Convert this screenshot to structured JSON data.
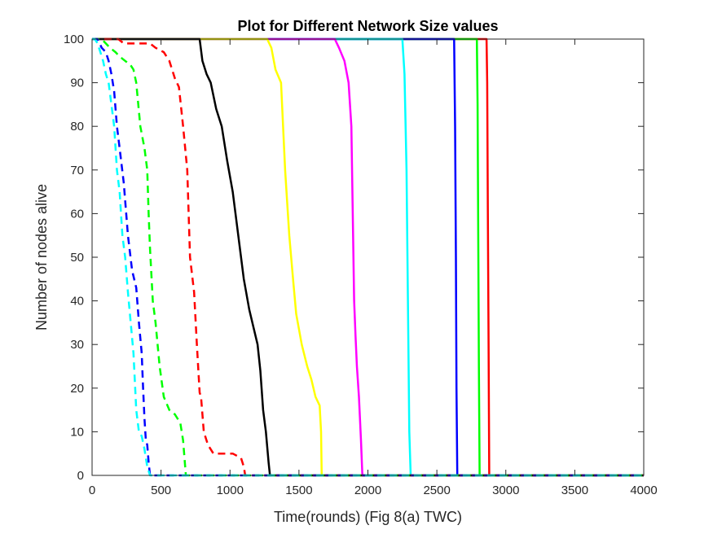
{
  "chart_data": {
    "type": "line",
    "title": "Plot for Different Network Size values",
    "xlabel": "Time(rounds) (Fig 8(a) TWC)",
    "ylabel": "Number of nodes alive",
    "xlim": [
      0,
      4000
    ],
    "ylim": [
      0,
      100
    ],
    "xticks": [
      0,
      500,
      1000,
      1500,
      2000,
      2500,
      3000,
      3500,
      4000
    ],
    "yticks": [
      0,
      10,
      20,
      30,
      40,
      50,
      60,
      70,
      80,
      90,
      100
    ],
    "grid": false,
    "box": true,
    "series": [
      {
        "color": "#ff0000",
        "style": "solid",
        "x": [
          0,
          2860,
          2865,
          2870,
          2875,
          2880,
          4000
        ],
        "y": [
          100,
          100,
          90,
          60,
          30,
          0,
          0
        ]
      },
      {
        "color": "#00ff00",
        "style": "solid",
        "x": [
          0,
          2790,
          2795,
          2800,
          2805,
          2810,
          4000
        ],
        "y": [
          100,
          100,
          85,
          55,
          25,
          0,
          0
        ]
      },
      {
        "color": "#0000ff",
        "style": "solid",
        "x": [
          0,
          2625,
          2632,
          2638,
          2642,
          2648,
          4000
        ],
        "y": [
          100,
          100,
          80,
          50,
          20,
          0,
          0
        ]
      },
      {
        "color": "#00ffff",
        "style": "solid",
        "x": [
          0,
          2250,
          2265,
          2280,
          2290,
          2300,
          2310,
          4000
        ],
        "y": [
          100,
          100,
          92,
          70,
          40,
          10,
          0,
          0
        ]
      },
      {
        "color": "#ff00ff",
        "style": "solid",
        "x": [
          0,
          1760,
          1790,
          1830,
          1860,
          1880,
          1890,
          1900,
          1910,
          1920,
          1935,
          1950,
          1960,
          4000
        ],
        "y": [
          100,
          100,
          98,
          95,
          90,
          80,
          60,
          40,
          32,
          25,
          18,
          8,
          0,
          0
        ]
      },
      {
        "color": "#ffff00",
        "style": "solid",
        "x": [
          0,
          1270,
          1300,
          1330,
          1370,
          1400,
          1430,
          1460,
          1480,
          1520,
          1560,
          1590,
          1620,
          1650,
          1660,
          1665,
          4000
        ],
        "y": [
          100,
          100,
          98,
          93,
          90,
          70,
          55,
          44,
          37,
          30,
          25,
          22,
          18,
          16,
          10,
          0,
          0
        ]
      },
      {
        "color": "#000000",
        "style": "solid",
        "x": [
          0,
          780,
          800,
          830,
          860,
          900,
          940,
          980,
          1020,
          1060,
          1100,
          1140,
          1170,
          1200,
          1220,
          1240,
          1260,
          1280,
          1290,
          4000
        ],
        "y": [
          100,
          100,
          95,
          92,
          90,
          84,
          80,
          72,
          65,
          55,
          45,
          38,
          34,
          30,
          24,
          15,
          10,
          3,
          0,
          0
        ]
      },
      {
        "color": "#ff0000",
        "style": "dash",
        "x": [
          0,
          190,
          230,
          260,
          300,
          340,
          390,
          420,
          460,
          520,
          560,
          600,
          630,
          660,
          690,
          710,
          740,
          760,
          780,
          790,
          810,
          840,
          880,
          940,
          1020,
          1080,
          1100,
          1110,
          4000
        ],
        "y": [
          100,
          100,
          99,
          99,
          99,
          99,
          99,
          99,
          98,
          97,
          95,
          91,
          89,
          80,
          70,
          50,
          42,
          30,
          19,
          18,
          10,
          7,
          5,
          5,
          5,
          4,
          2,
          0,
          0
        ]
      },
      {
        "color": "#00ff00",
        "style": "dash",
        "x": [
          0,
          70,
          100,
          130,
          170,
          200,
          240,
          280,
          300,
          320,
          350,
          380,
          400,
          410,
          420,
          440,
          460,
          490,
          520,
          560,
          600,
          640,
          660,
          680,
          4000
        ],
        "y": [
          100,
          100,
          99,
          98,
          97,
          96,
          95,
          94,
          93,
          90,
          80,
          75,
          70,
          60,
          52,
          40,
          35,
          25,
          18,
          15,
          14,
          12,
          8,
          0,
          0
        ]
      },
      {
        "color": "#0000ff",
        "style": "dash",
        "x": [
          0,
          40,
          70,
          100,
          120,
          140,
          160,
          180,
          200,
          230,
          260,
          290,
          320,
          340,
          360,
          370,
          380,
          390,
          400,
          410,
          420,
          4000
        ],
        "y": [
          100,
          100,
          98,
          97,
          95,
          92,
          88,
          80,
          75,
          67,
          55,
          47,
          43,
          35,
          28,
          20,
          13,
          8,
          7,
          3,
          0,
          0
        ]
      },
      {
        "color": "#00ffff",
        "style": "dash",
        "x": [
          0,
          20,
          40,
          60,
          80,
          100,
          120,
          140,
          160,
          180,
          200,
          220,
          240,
          260,
          280,
          300,
          320,
          340,
          360,
          380,
          400,
          420,
          4000
        ],
        "y": [
          100,
          100,
          99,
          97,
          95,
          92,
          90,
          85,
          80,
          70,
          65,
          55,
          50,
          42,
          35,
          28,
          15,
          10,
          9,
          6,
          2,
          0,
          0
        ]
      }
    ]
  }
}
